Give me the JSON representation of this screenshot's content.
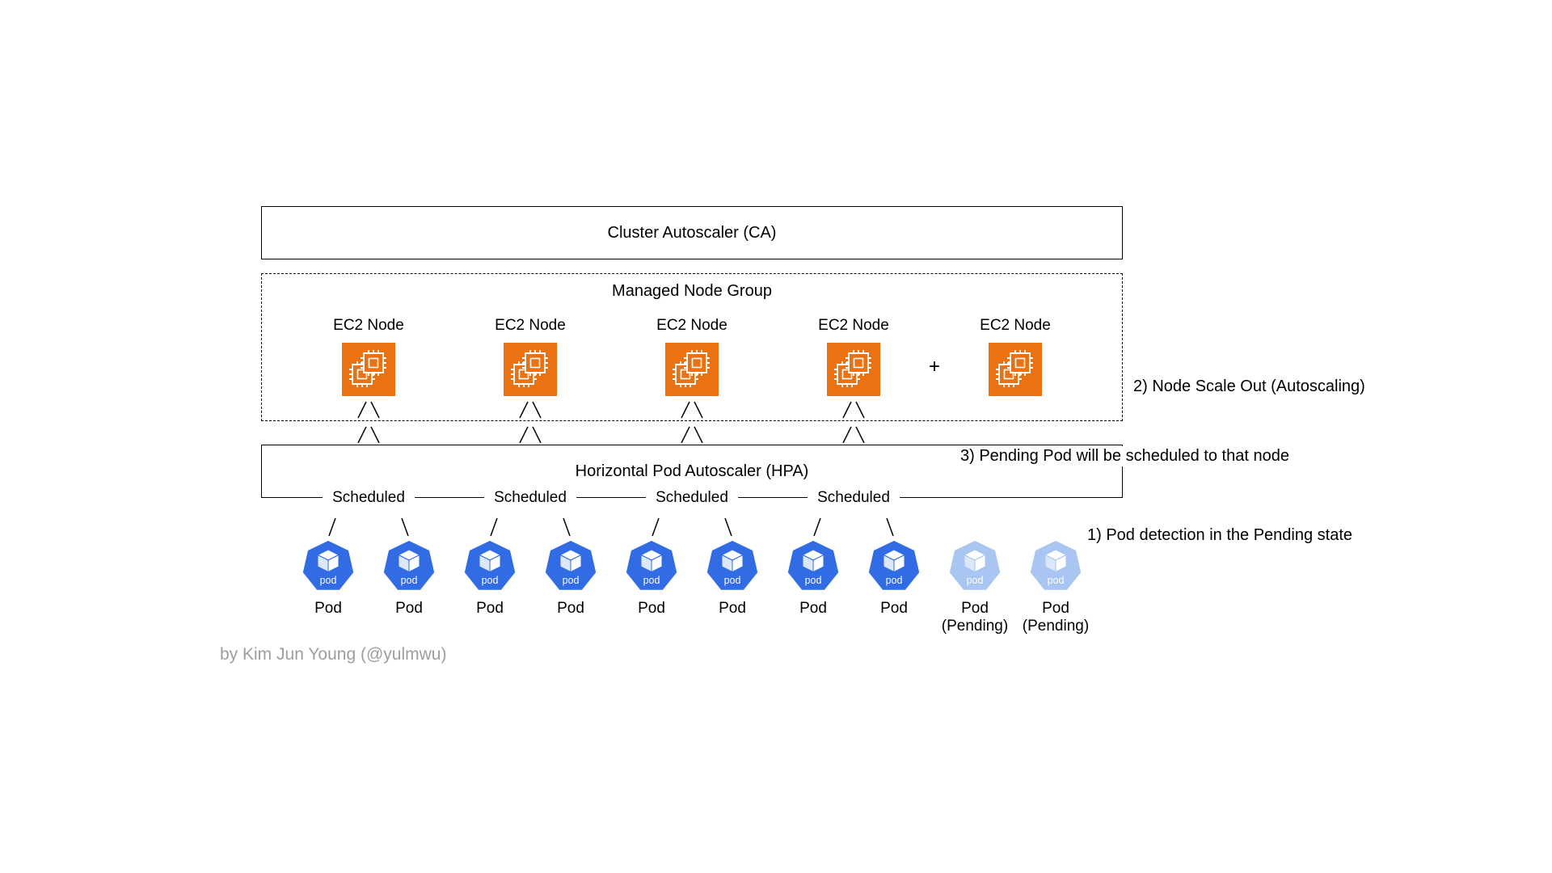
{
  "ca_box": {
    "label": "Cluster Autoscaler (CA)"
  },
  "node_group": {
    "title": "Managed Node Group",
    "plus_sign": "+",
    "nodes": [
      {
        "label": "EC2 Node"
      },
      {
        "label": "EC2 Node"
      },
      {
        "label": "EC2 Node"
      },
      {
        "label": "EC2 Node"
      },
      {
        "label": "EC2 Node"
      }
    ]
  },
  "hpa_box": {
    "label": "Horizontal Pod Autoscaler (HPA)"
  },
  "scheduled_labels": [
    "Scheduled",
    "Scheduled",
    "Scheduled",
    "Scheduled"
  ],
  "pod_icon_text": "pod",
  "pods": [
    {
      "label": "Pod",
      "state": "running"
    },
    {
      "label": "Pod",
      "state": "running"
    },
    {
      "label": "Pod",
      "state": "running"
    },
    {
      "label": "Pod",
      "state": "running"
    },
    {
      "label": "Pod",
      "state": "running"
    },
    {
      "label": "Pod",
      "state": "running"
    },
    {
      "label": "Pod",
      "state": "running"
    },
    {
      "label": "Pod",
      "state": "running"
    },
    {
      "label": "Pod",
      "sublabel": "(Pending)",
      "state": "pending"
    },
    {
      "label": "Pod",
      "sublabel": "(Pending)",
      "state": "pending"
    }
  ],
  "annotations": {
    "pod_detection": "1) Pod detection in the Pending state",
    "node_scale_out": "2) Node Scale Out (Autoscaling)",
    "pod_scheduled": "3) Pending Pod will be scheduled to that node"
  },
  "credit": "by Kim Jun Young (@yulmwu)",
  "colors": {
    "ec2_orange": "#EC7211",
    "pod_blue": "#326CE5",
    "pod_pending_blue": "#A9C6F2",
    "line": "#000000",
    "credit_gray": "#9E9E9E"
  },
  "icons": {
    "node": "ec2-instance-icon",
    "pod": "k8s-pod-icon"
  }
}
